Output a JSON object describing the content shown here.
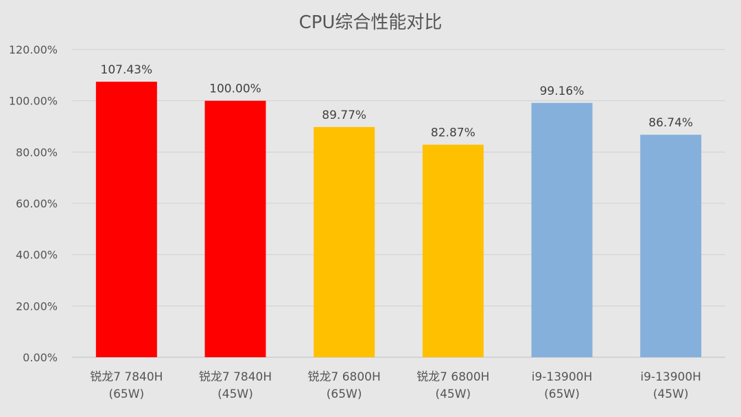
{
  "chart_data": {
    "type": "bar",
    "title": "CPU综合性能对比",
    "xlabel": "",
    "ylabel": "",
    "ylim": [
      0,
      1.2
    ],
    "ytick_labels": [
      "0.00%",
      "20.00%",
      "40.00%",
      "60.00%",
      "80.00%",
      "100.00%",
      "120.00%"
    ],
    "yticks": [
      0,
      0.2,
      0.4,
      0.6,
      0.8,
      1.0,
      1.2
    ],
    "grid": true,
    "legend": "none",
    "categories": [
      [
        "锐龙7 7840H",
        "(65W)"
      ],
      [
        "锐龙7 7840H",
        "(45W)"
      ],
      [
        "锐龙7 6800H",
        "(65W)"
      ],
      [
        "锐龙7 6800H",
        "(45W)"
      ],
      [
        "i9-13900H",
        "(65W)"
      ],
      [
        "i9-13900H",
        "(45W)"
      ]
    ],
    "values": [
      1.0743,
      1.0,
      0.8977,
      0.8287,
      0.9916,
      0.8674
    ],
    "data_labels": [
      "107.43%",
      "100.00%",
      "89.77%",
      "82.87%",
      "99.16%",
      "86.74%"
    ],
    "bar_colors": [
      "#ff0000",
      "#ff0000",
      "#ffc000",
      "#ffc000",
      "#86b0dc",
      "#86b0dc"
    ],
    "grid_color": "#d0d0d0",
    "axis_color": "#bfbfbf"
  }
}
